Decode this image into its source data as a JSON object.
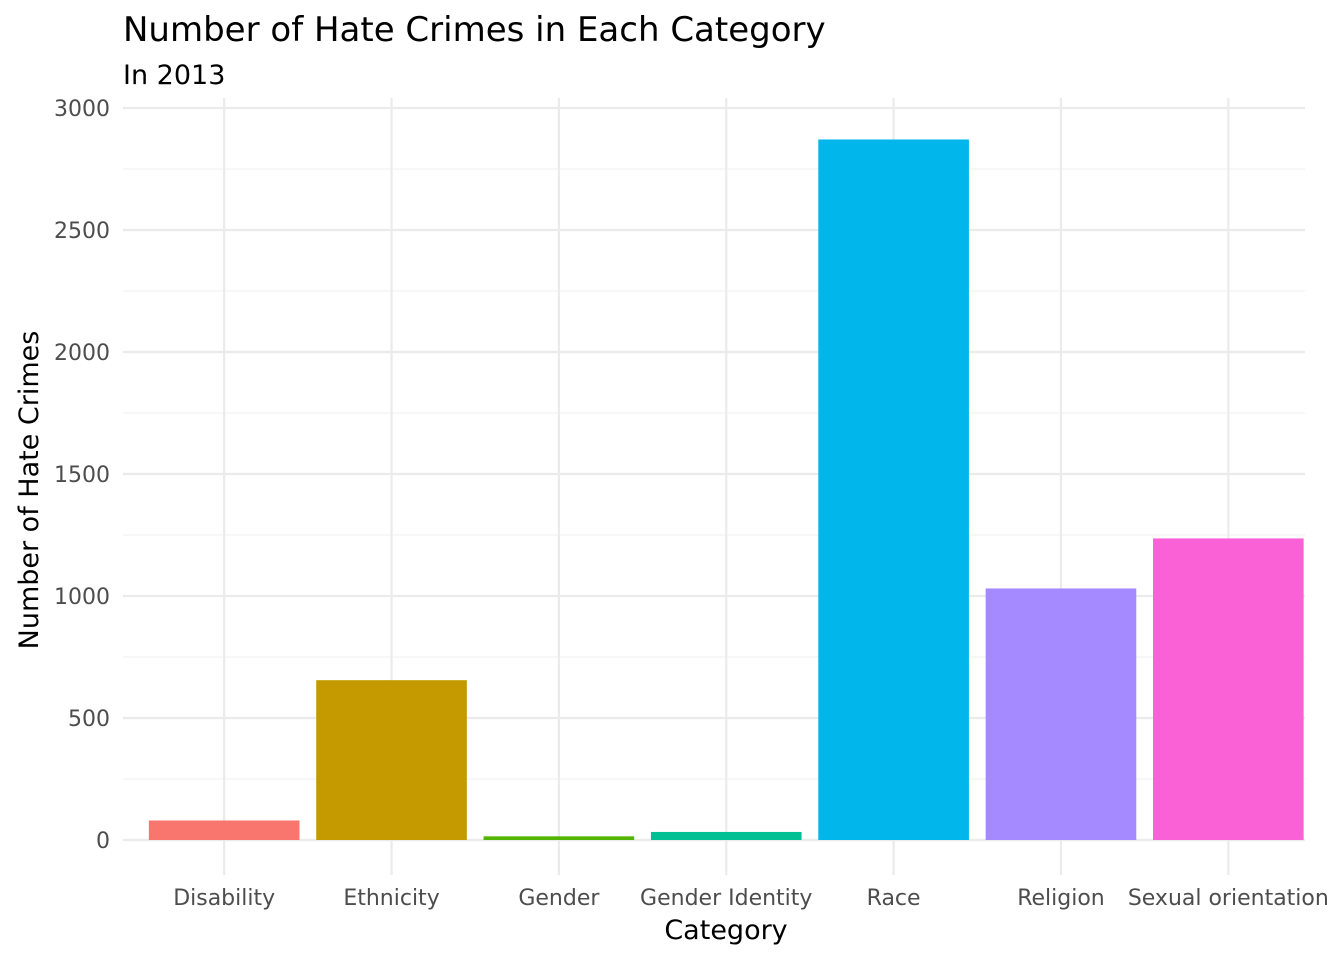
{
  "chart_data": {
    "type": "bar",
    "title": "Number of Hate Crimes in Each Category",
    "subtitle": "In 2013",
    "xlabel": "Category",
    "ylabel": "Number of Hate Crimes",
    "categories": [
      "Disability",
      "Ethnicity",
      "Gender",
      "Gender Identity",
      "Race",
      "Religion",
      "Sexual orientation"
    ],
    "values": [
      80,
      655,
      15,
      33,
      2871,
      1031,
      1236
    ],
    "colors": [
      "#F8766D",
      "#C49A00",
      "#53B400",
      "#00C094",
      "#00B6EB",
      "#A58AFF",
      "#FB61D7"
    ],
    "ylim": [
      0,
      3000
    ],
    "yticks": [
      0,
      500,
      1000,
      1500,
      2000,
      2500,
      3000
    ],
    "grid": true,
    "legend": "none"
  }
}
